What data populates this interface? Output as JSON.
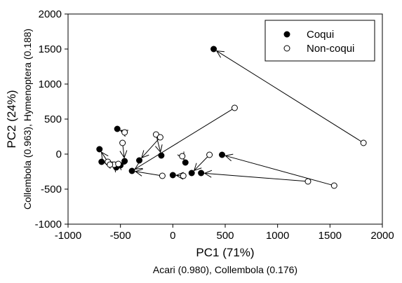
{
  "chart_data": {
    "type": "scatter",
    "title": "",
    "x_axis": {
      "label": "PC1 (71%)",
      "sublabel": "Acari (0.980), Collembola (0.176)",
      "range": [
        -1000,
        2000
      ],
      "ticks": [
        -1000,
        -500,
        0,
        500,
        1000,
        1500,
        2000
      ]
    },
    "y_axis": {
      "label": "PC2 (24%)",
      "sublabel": "Collembola (0.963), Hymenoptera (0.188)",
      "range": [
        -1000,
        2000
      ],
      "ticks": [
        -1000,
        -500,
        0,
        500,
        1000,
        1500,
        2000
      ]
    },
    "grid": false,
    "legend_position": "top-right",
    "series": [
      {
        "name": "Coqui",
        "marker": "filled-circle",
        "color": "#000000",
        "points": [
          [
            390,
            1500
          ],
          [
            470,
            -10
          ],
          [
            270,
            -270
          ],
          [
            180,
            -270
          ],
          [
            120,
            -120
          ],
          [
            0,
            -300
          ],
          [
            -390,
            -240
          ],
          [
            -530,
            360
          ],
          [
            -460,
            -100
          ],
          [
            -320,
            -90
          ],
          [
            -110,
            -20
          ],
          [
            -540,
            -190
          ],
          [
            -700,
            70
          ],
          [
            -680,
            -110
          ],
          [
            -500,
            -160
          ]
        ]
      },
      {
        "name": "Non-coqui",
        "marker": "open-circle",
        "color": "#000000",
        "points": [
          [
            1820,
            160
          ],
          [
            1540,
            -450
          ],
          [
            1290,
            -390
          ],
          [
            590,
            660
          ],
          [
            350,
            -10
          ],
          [
            90,
            -30
          ],
          [
            100,
            -310
          ],
          [
            -100,
            -310
          ],
          [
            -160,
            280
          ],
          [
            -120,
            240
          ],
          [
            -460,
            310
          ],
          [
            -480,
            160
          ],
          [
            -560,
            -150
          ],
          [
            -620,
            -110
          ],
          [
            -520,
            -140
          ],
          [
            -600,
            -150
          ]
        ]
      }
    ],
    "arrows": [
      {
        "from": [
          1820,
          160
        ],
        "to": [
          390,
          1500
        ]
      },
      {
        "from": [
          1540,
          -450
        ],
        "to": [
          470,
          -10
        ]
      },
      {
        "from": [
          1290,
          -390
        ],
        "to": [
          270,
          -270
        ]
      },
      {
        "from": [
          590,
          660
        ],
        "to": [
          -390,
          -240
        ]
      },
      {
        "from": [
          350,
          -10
        ],
        "to": [
          180,
          -270
        ]
      },
      {
        "from": [
          90,
          -30
        ],
        "to": [
          120,
          -120
        ]
      },
      {
        "from": [
          100,
          -310
        ],
        "to": [
          0,
          -300
        ]
      },
      {
        "from": [
          -100,
          -310
        ],
        "to": [
          -390,
          -240
        ]
      },
      {
        "from": [
          -160,
          280
        ],
        "to": [
          -110,
          -20
        ]
      },
      {
        "from": [
          -120,
          240
        ],
        "to": [
          -320,
          -90
        ]
      },
      {
        "from": [
          -460,
          310
        ],
        "to": [
          -530,
          360
        ]
      },
      {
        "from": [
          -480,
          160
        ],
        "to": [
          -460,
          -100
        ]
      },
      {
        "from": [
          -560,
          -150
        ],
        "to": [
          -540,
          -190
        ]
      },
      {
        "from": [
          -620,
          -110
        ],
        "to": [
          -700,
          70
        ]
      },
      {
        "from": [
          -520,
          -140
        ],
        "to": [
          -500,
          -160
        ]
      },
      {
        "from": [
          -600,
          -150
        ],
        "to": [
          -680,
          -110
        ]
      }
    ]
  }
}
